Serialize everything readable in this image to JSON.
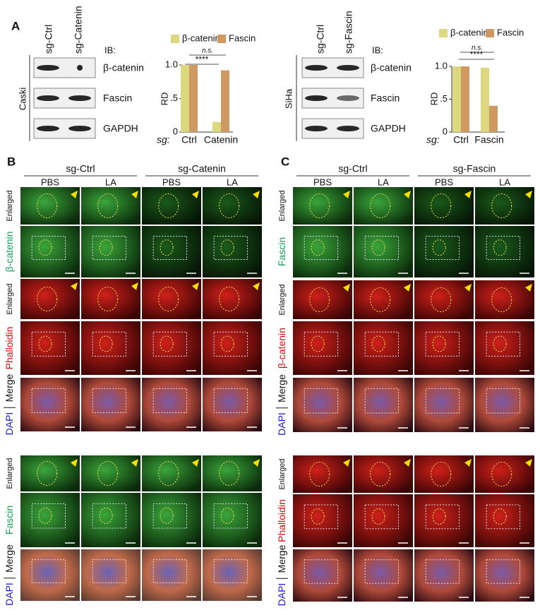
{
  "chart_data": [
    {
      "type": "bar",
      "categories": [
        "Ctrl",
        "Catenin"
      ],
      "xlabel": "sg:",
      "ylabel": "RD",
      "series": [
        {
          "name": "β-catenin",
          "color": "#ddd77f",
          "values": [
            1.0,
            0.15
          ]
        },
        {
          "name": "Fascin",
          "color": "#cf9a62",
          "values": [
            1.0,
            0.92
          ]
        }
      ],
      "ylim": [
        0,
        1
      ],
      "yticks": [
        0,
        {
          "value": 0.5,
          "label": ".5"
        },
        {
          "value": 1,
          "label": "1.0"
        }
      ],
      "annotations": [
        "n.s.",
        "****"
      ]
    },
    {
      "type": "bar",
      "categories": [
        "Ctrl",
        "Fascin"
      ],
      "xlabel": "sg:",
      "ylabel": "RD",
      "series": [
        {
          "name": "β-catenin",
          "color": "#ddd77f",
          "values": [
            1.0,
            0.98
          ]
        },
        {
          "name": "Fascin",
          "color": "#cf9a62",
          "values": [
            1.0,
            0.4
          ]
        }
      ],
      "ylim": [
        0,
        1
      ],
      "yticks": [
        0,
        {
          "value": 0.5,
          "label": ".5"
        },
        {
          "value": 1,
          "label": "1.0"
        }
      ],
      "annotations": [
        "n.s.",
        "****"
      ]
    }
  ],
  "panel_labels": [
    "A",
    "B",
    "C"
  ],
  "blots": [
    {
      "cell": "Caski",
      "lanes": [
        "sg-Ctrl",
        "sg-Catenin"
      ],
      "ib": "IB:",
      "rows": [
        "β-catenin",
        "Fascin",
        "GAPDH"
      ]
    },
    {
      "cell": "SiHa",
      "lanes": [
        "sg-Ctrl",
        "sg-Fascin"
      ],
      "ib": "IB:",
      "rows": [
        "β-catenin",
        "Fascin",
        "GAPDH"
      ]
    }
  ],
  "panel_b": {
    "groups": [
      "sg-Ctrl",
      "sg-Catenin"
    ],
    "columns": [
      "PBS",
      "LA",
      "PBS",
      "LA"
    ],
    "rows": [
      [
        "Enlarged"
      ],
      [
        "β-catenin"
      ],
      [
        "Enlarged"
      ],
      [
        "Phalloidin"
      ],
      [
        "DAPI",
        "Merge"
      ],
      [
        "Enlarged"
      ],
      [
        "Fascin"
      ],
      [
        "DAPI",
        "Merge"
      ]
    ]
  },
  "panel_c": {
    "groups": [
      "sg-Ctrl",
      "sg-Fascin"
    ],
    "columns": [
      "PBS",
      "LA",
      "PBS",
      "LA"
    ],
    "rows": [
      [
        "Enlarged"
      ],
      [
        "Fascin"
      ],
      [
        "Enlarged"
      ],
      [
        "β-catenin"
      ],
      [
        "DAPI",
        "Merge"
      ],
      [
        "Enlarged"
      ],
      [
        "Phalloidin"
      ],
      [
        "DAPI",
        "Merge"
      ]
    ]
  }
}
